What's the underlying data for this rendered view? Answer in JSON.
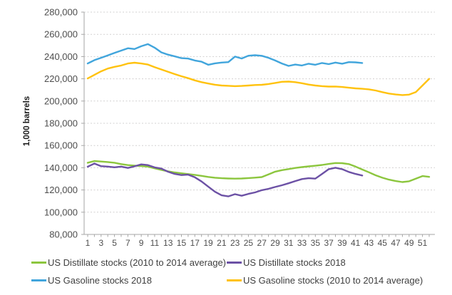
{
  "chart_data": {
    "type": "line",
    "title": "",
    "xlabel": "",
    "ylabel": "1,000 barrels",
    "ylim": [
      80000,
      280000
    ],
    "ytick_step": 20000,
    "ytick_labels": [
      "280,000",
      "260,000",
      "240,000",
      "220,000",
      "200,000",
      "180,000",
      "160,000",
      "140,000",
      "120,000",
      "100,000",
      "80,000"
    ],
    "xlim": [
      1,
      52
    ],
    "xtick_labels": [
      "1",
      "3",
      "5",
      "7",
      "9",
      "11",
      "13",
      "15",
      "17",
      "19",
      "21",
      "23",
      "25",
      "27",
      "29",
      "31",
      "33",
      "35",
      "37",
      "39",
      "41",
      "43",
      "45",
      "47",
      "49",
      "51"
    ],
    "x_unit": "week of year",
    "grid": "horizontal-dashed",
    "legend_position": "bottom",
    "series": [
      {
        "name": "US Distillate stocks (2010 to 2014 average)",
        "color": "#8cc63e",
        "x_start": 1,
        "values": [
          144500,
          146000,
          145600,
          145100,
          144500,
          143300,
          142400,
          141900,
          141500,
          141000,
          139500,
          138100,
          136800,
          135800,
          135000,
          134300,
          133600,
          132700,
          131700,
          131000,
          130600,
          130300,
          130200,
          130300,
          130700,
          131100,
          131600,
          134000,
          136500,
          137800,
          138800,
          139800,
          140600,
          141200,
          141800,
          142500,
          143400,
          144200,
          144100,
          143300,
          141000,
          138400,
          135900,
          133200,
          131000,
          129300,
          128000,
          127100,
          127800,
          130100,
          132500,
          131800
        ]
      },
      {
        "name": "US Distillate stocks 2018",
        "color": "#6c51a5",
        "x_start": 1,
        "values": [
          140900,
          143800,
          141400,
          141000,
          140400,
          141000,
          139800,
          141300,
          143000,
          142400,
          140300,
          139200,
          136400,
          134400,
          133400,
          133800,
          131400,
          127600,
          123000,
          118400,
          115200,
          114200,
          116200,
          114800,
          116500,
          117800,
          119800,
          121000,
          122700,
          124200,
          126000,
          128000,
          129800,
          130600,
          130200,
          134400,
          138700,
          140000,
          138700,
          136200,
          134400,
          133000
        ]
      },
      {
        "name": "US Gasoline stocks 2018",
        "color": "#41a5dc",
        "x_start": 1,
        "values": [
          233800,
          236800,
          238900,
          241000,
          243300,
          245400,
          247500,
          246800,
          249300,
          251200,
          248000,
          243800,
          241700,
          240200,
          238600,
          238200,
          236500,
          235400,
          232600,
          233900,
          234600,
          235000,
          240000,
          238300,
          240800,
          241200,
          240700,
          238900,
          236500,
          233800,
          231600,
          232800,
          232000,
          233600,
          232600,
          234200,
          233200,
          234600,
          233600,
          235000,
          234800,
          234200
        ]
      },
      {
        "name": "US Gasoline stocks (2010 to 2014 average)",
        "color": "#ffc20e",
        "x_start": 1,
        "values": [
          220300,
          223500,
          226700,
          229200,
          230800,
          232000,
          233800,
          234500,
          233800,
          232800,
          230500,
          228400,
          226300,
          224200,
          222300,
          220600,
          218600,
          217000,
          215800,
          214700,
          214000,
          213700,
          213400,
          213600,
          214000,
          214400,
          214600,
          215300,
          216300,
          217300,
          217500,
          217000,
          216000,
          214800,
          214000,
          213400,
          213000,
          213100,
          212600,
          212000,
          211400,
          211000,
          210500,
          209500,
          208000,
          206700,
          205900,
          205400,
          205800,
          208000,
          214000,
          220000
        ]
      }
    ],
    "legend_order": [
      0,
      1,
      2,
      3
    ]
  }
}
